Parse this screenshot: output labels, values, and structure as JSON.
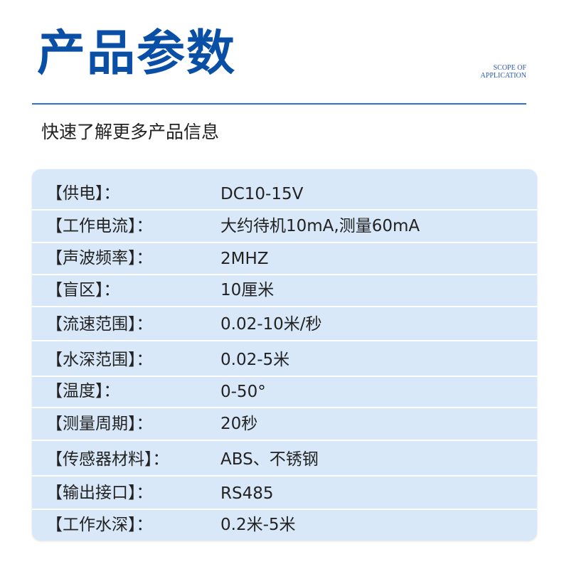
{
  "header": {
    "title": "产品参数",
    "scope_line1": "SCOPE OF",
    "scope_line2": "APPLICATION",
    "subtitle": "快速了解更多产品信息"
  },
  "colors": {
    "accent": "#0a4fa6",
    "card_bg": "#d8e8f8"
  },
  "specs": [
    {
      "label": "【供电】：",
      "value": "DC10-15V"
    },
    {
      "label": "【工作电流】：",
      "value": "大约待机10mA,测量60mA"
    },
    {
      "label": "【声波频率】：",
      "value": "2MHZ"
    },
    {
      "label": "【盲区】：",
      "value": "10厘米"
    },
    {
      "label": "【流速范围】：",
      "value": "0.02-10米/秒"
    },
    {
      "label": "【水深范围】：",
      "value": "0.02-5米"
    },
    {
      "label": "【温度】：",
      "value": "0-50°"
    },
    {
      "label": "【测量周期】：",
      "value": "20秒"
    },
    {
      "label": "【传感器材料】：",
      "value": "ABS、不锈钢"
    },
    {
      "label": "【输出接口】：",
      "value": "RS485"
    },
    {
      "label": "【工作水深】：",
      "value": "0.2米-5米"
    }
  ]
}
